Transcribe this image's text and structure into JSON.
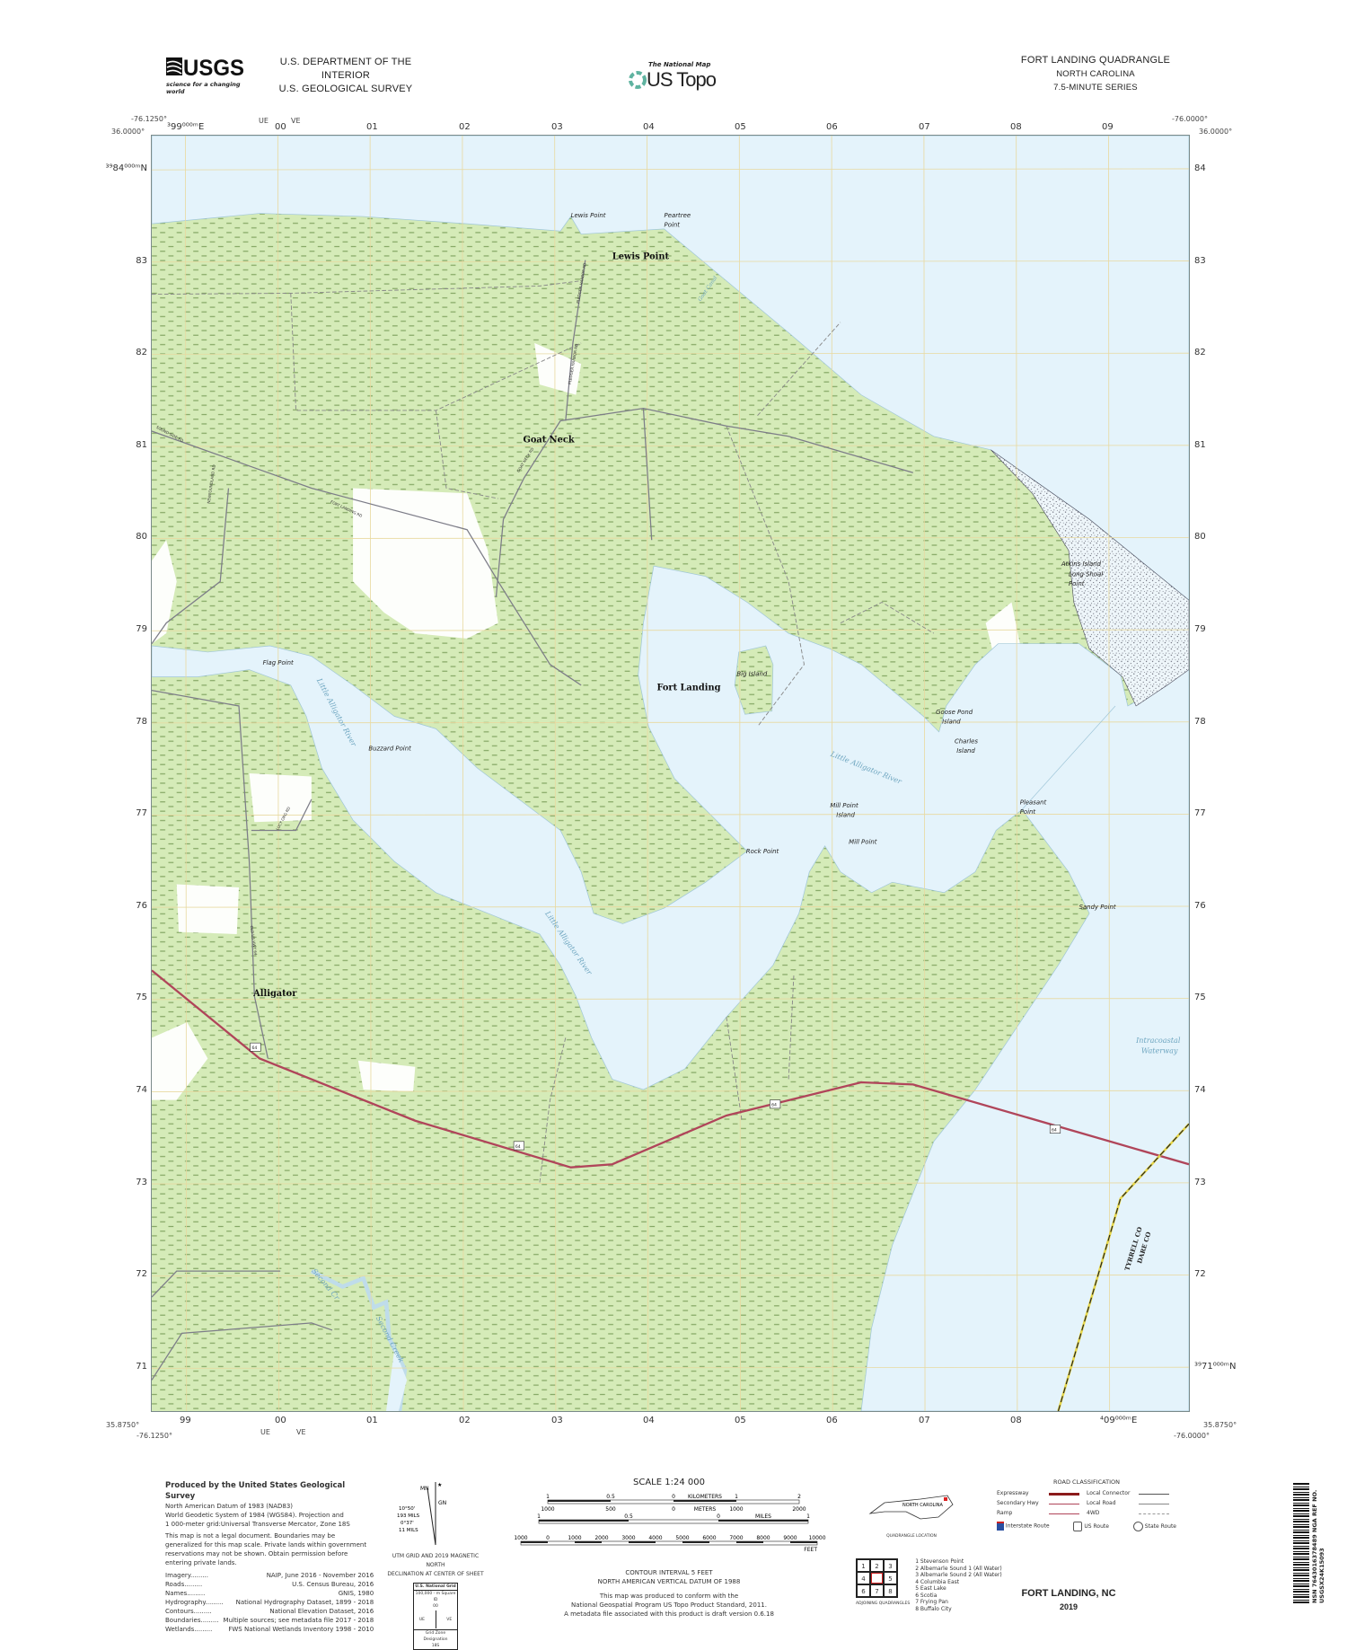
{
  "header": {
    "logo_text": "USGS",
    "logo_tagline": "science for a changing world",
    "agency_line1": "U.S. DEPARTMENT OF THE INTERIOR",
    "agency_line2": "U.S. GEOLOGICAL SURVEY",
    "center_tag": "The National Map",
    "center_title": "US Topo",
    "quad_title": "FORT LANDING QUADRANGLE",
    "state": "NORTH CAROLINA",
    "series": "7.5-MINUTE SERIES"
  },
  "colors": {
    "water": "#e4f3fb",
    "wetland": "#d5ebb8",
    "us_route": "#b0455a",
    "road": "#7d7d88",
    "grid": "#e8d9a0",
    "county_line": "#e8d84a"
  },
  "corners": {
    "west_lon": "-76.1250°",
    "east_lon": "-76.0000°",
    "north_lat": "36.0000°",
    "south_lat": "35.8750°"
  },
  "grid_zone_top": [
    "UE",
    "VE"
  ],
  "grid_zone_bottom": [
    "UE",
    "VE"
  ],
  "eastings": [
    "³99⁰⁰⁰ᵐE",
    "00",
    "01",
    "02",
    "03",
    "04",
    "05",
    "06",
    "07",
    "08",
    "09"
  ],
  "eastings_bottom": [
    "99",
    "00",
    "01",
    "02",
    "03",
    "04",
    "05",
    "06",
    "07",
    "08",
    "⁴09⁰⁰⁰ᵐE"
  ],
  "northings_left": [
    "³⁹84⁰⁰⁰ᵐN",
    "83",
    "82",
    "81",
    "80",
    "79",
    "78",
    "77",
    "76",
    "75",
    "74",
    "73",
    "72",
    "71"
  ],
  "northings_right": [
    "84",
    "83",
    "82",
    "81",
    "80",
    "79",
    "78",
    "77",
    "76",
    "75",
    "74",
    "73",
    "72",
    "³⁹71⁰⁰⁰ᵐN"
  ],
  "map": {
    "places": {
      "lewis_point_town": "Lewis Point",
      "goat_neck": "Goat Neck",
      "fort_landing": "Fort Landing",
      "alligator": "Alligator"
    },
    "features": {
      "lewis_point": "Lewis Point",
      "peartree_1": "Peartree",
      "peartree_2": "Point",
      "big_island": "Big Island",
      "flag_point": "Flag Point",
      "buzzard_point": "Buzzard Point",
      "goose_1": "Goose Pond",
      "goose_2": "Island",
      "charles_1": "Charles",
      "charles_2": "Island",
      "millpt_isl_1": "Mill Point",
      "millpt_isl_2": "Island",
      "mill_point": "Mill Point",
      "rock_point": "Rock Point",
      "pleasant_1": "Pleasant",
      "pleasant_2": "Point",
      "sandy_point": "Sandy Point",
      "atkins": "Atkins Island",
      "longshoal_1": "Long Shoal",
      "longshoal_2": "Point"
    },
    "hydro": {
      "lar_1": "Little Alligator River",
      "lar_2": "Little Alligator River",
      "lar_3": "Little Alligator River",
      "icw_1": "Intracoastal",
      "icw_2": "Waterway",
      "second_cr": "Second Cr",
      "second_creek": "Second Creek",
      "canal": "Goat Canal"
    },
    "roads": {
      "sound_side": "SOUND SIDE RD",
      "newfoundland": "NEWFOUNDLAND RD",
      "fort_landing": "FORT LANDING RD",
      "goat_neck": "GOAT NECK RD",
      "pledger_1": "PLEDGER HARBOR RD",
      "pledger_2": "PLEDGER HARBOR RD",
      "old_us": "OLD US HWY 64",
      "lucy": "LUCY ORG RD"
    },
    "route_shield": "64",
    "county_1": "TYRRELL CO",
    "county_2": "DARE CO"
  },
  "footer": {
    "produced_by": "Produced by the United States Geological Survey",
    "datum_lines": [
      "North American Datum of 1983 (NAD83)",
      "World Geodetic System of 1984 (WGS84). Projection and",
      "1 000-meter grid:Universal Transverse Mercator, Zone 18S"
    ],
    "legal_lines": [
      "This map is not a legal document. Boundaries may be",
      "generalized for this map scale. Private lands within government",
      "reservations may not be shown. Obtain permission before",
      "entering private lands."
    ],
    "sources": [
      {
        "k": "Imagery",
        "v": "NAIP, June 2016 - November 2016"
      },
      {
        "k": "Roads",
        "v": "U.S. Census Bureau, 2016"
      },
      {
        "k": "Names",
        "v": "GNIS, 1980"
      },
      {
        "k": "Hydrography",
        "v": "National Hydrography Dataset, 1899 - 2018"
      },
      {
        "k": "Contours",
        "v": "National Elevation Dataset, 2016"
      },
      {
        "k": "Boundaries",
        "v": "Multiple sources; see metadata file 2017 - 2018"
      },
      {
        "k": "Wetlands",
        "v": "FWS National Wetlands Inventory 1998 - 2010"
      }
    ],
    "declination": {
      "mn": "MN",
      "gn": "GN",
      "a1": "10°50'",
      "a2": "193 MILS",
      "a3": "0°37'",
      "a4": "11 MILS",
      "caption1": "UTM GRID AND 2019 MAGNETIC NORTH",
      "caption2": "DECLINATION AT CENTER OF SHEET"
    },
    "usng": {
      "title": "U.S. National Grid",
      "sub": "100,000 - m Square ID",
      "center": "00",
      "left": "UE",
      "right": "VE",
      "gzd_label": "Grid Zone Designation",
      "gzd": "18S"
    },
    "scale": {
      "title": "SCALE 1:24 000",
      "km_ticks": [
        "1",
        "0.5",
        "0",
        "1",
        "2"
      ],
      "km_label": "KILOMETERS",
      "m_ticks": [
        "1000",
        "500",
        "0",
        "1000",
        "2000"
      ],
      "m_label": "METERS",
      "mi_ticks": [
        "1",
        "0.5",
        "0",
        "1"
      ],
      "mi_label": "MILES",
      "ft_ticks": [
        "1000",
        "0",
        "1000",
        "2000",
        "3000",
        "4000",
        "5000",
        "6000",
        "7000",
        "8000",
        "9000",
        "10000"
      ],
      "ft_label": "FEET"
    },
    "contour1": "CONTOUR INTERVAL 5 FEET",
    "contour2": "NORTH AMERICAN VERTICAL DATUM OF 1988",
    "standard_lines": [
      "This map was produced to conform with the",
      "National Geospatial Program US Topo Product Standard, 2011.",
      "A metadata file associated with this product is draft version 0.6.18"
    ],
    "locator_state": "NORTH CAROLINA",
    "locator_caption": "QUADRANGLE LOCATION",
    "adjoining_caption": "ADJOINING QUADRANGLES",
    "adjoining_cells": [
      "1",
      "2",
      "3",
      "4",
      "",
      "5",
      "6",
      "7",
      "8"
    ],
    "adjoining": [
      "1 Stevenson Point",
      "2 Albemarle Sound 1 (All Water)",
      "3 Albemarle Sound 2 (All Water)",
      "4 Columbia East",
      "5 East Lake",
      "6 Scotia",
      "7 Frying Pan",
      "8 Buffalo City"
    ],
    "road_class": {
      "title": "ROAD CLASSIFICATION",
      "items": [
        {
          "label": "Expressway",
          "color": "#8b1a1a"
        },
        {
          "label": "Secondary Hwy",
          "color": "#b0455a"
        },
        {
          "label": "Ramp",
          "color": "#b0455a"
        },
        {
          "label": "Local Connector",
          "color": "#555"
        },
        {
          "label": "Local Road",
          "color": "#888"
        },
        {
          "label": "4WD",
          "color": "#999"
        }
      ],
      "interstate": "Interstate Route",
      "us_route": "US Route",
      "state_route": "State Route"
    },
    "sheet_title": "FORT LANDING, NC",
    "year": "2019",
    "barcode_text": "NSN 7643016378489 NGA REF NO. USGSX24K15093"
  }
}
